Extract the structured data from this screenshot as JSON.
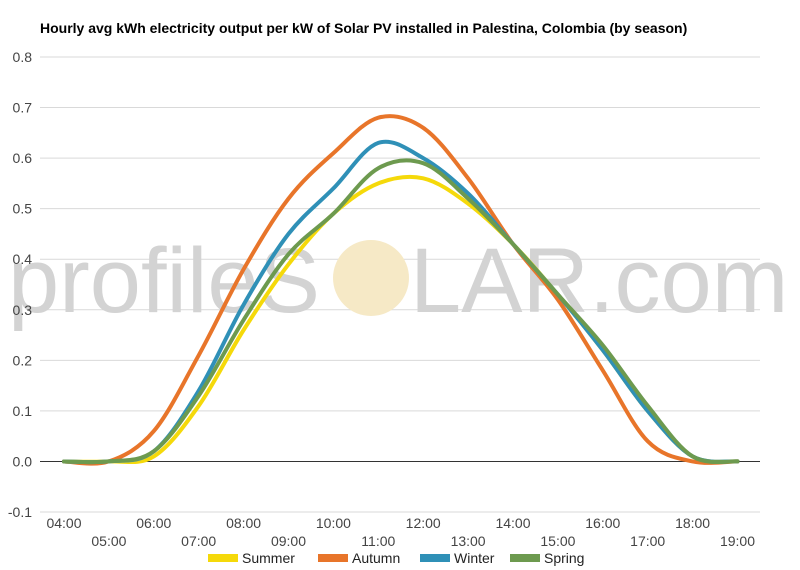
{
  "watermark": {
    "text_left": "profileS",
    "text_right": "LAR.com",
    "sun_color": "#f6e9c6"
  },
  "chart_data": {
    "type": "line",
    "title": "Hourly avg kWh electricity output per kW of Solar PV installed in Palestina, Colombia (by season)",
    "xlabel": "",
    "ylabel": "",
    "ylim": [
      -0.1,
      0.8
    ],
    "yticks": [
      "0.8",
      "0.7",
      "0.6",
      "0.5",
      "0.4",
      "0.3",
      "0.2",
      "0.1",
      "0.0",
      "-0.1"
    ],
    "x": [
      "04:00",
      "05:00",
      "06:00",
      "07:00",
      "08:00",
      "09:00",
      "10:00",
      "11:00",
      "12:00",
      "13:00",
      "14:00",
      "15:00",
      "16:00",
      "17:00",
      "18:00",
      "19:00"
    ],
    "grid": true,
    "legend_position": "bottom",
    "series": [
      {
        "name": "Summer",
        "color": "#f5d90a",
        "values": [
          0,
          0,
          0.01,
          0.11,
          0.26,
          0.39,
          0.49,
          0.55,
          0.56,
          0.51,
          0.43,
          0.33,
          0.22,
          0.1,
          0.01,
          0
        ]
      },
      {
        "name": "Autumn",
        "color": "#e8752a",
        "values": [
          0,
          0,
          0.06,
          0.21,
          0.38,
          0.52,
          0.61,
          0.68,
          0.66,
          0.56,
          0.43,
          0.32,
          0.18,
          0.04,
          0,
          0
        ]
      },
      {
        "name": "Winter",
        "color": "#2f90b7",
        "values": [
          0,
          0,
          0.02,
          0.14,
          0.31,
          0.45,
          0.54,
          0.63,
          0.6,
          0.53,
          0.43,
          0.33,
          0.22,
          0.1,
          0.01,
          0
        ]
      },
      {
        "name": "Spring",
        "color": "#6d9a4f",
        "values": [
          0,
          0,
          0.02,
          0.13,
          0.28,
          0.41,
          0.49,
          0.58,
          0.59,
          0.52,
          0.43,
          0.33,
          0.23,
          0.11,
          0.01,
          0
        ]
      }
    ]
  }
}
